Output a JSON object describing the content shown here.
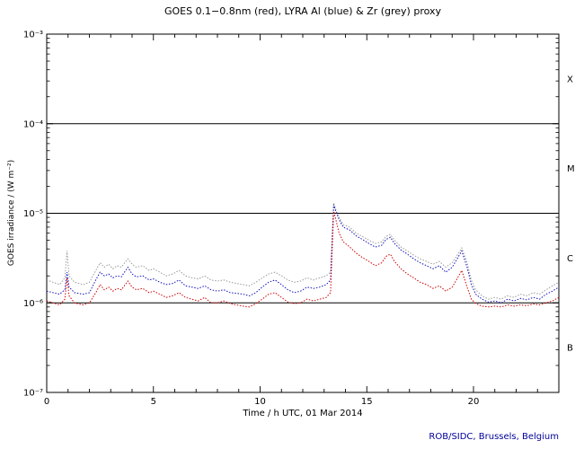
{
  "chart": {
    "title": "GOES 0.1−0.8nm (red), LYRA Al (blue) & Zr (grey) proxy",
    "xlabel": "Time / h UTC, 01 Mar 2014",
    "ylabel": "GOES irradiance / (W m⁻²)",
    "credit": "ROB/SIDC, Brussels, Belgium",
    "credit_color": "#000099"
  },
  "chart_data": {
    "type": "line",
    "title": "GOES 0.1−0.8nm (red), LYRA Al (blue) & Zr (grey) proxy",
    "xlabel": "Time / h UTC, 01 Mar 2014",
    "ylabel": "GOES irradiance / (W m⁻²)",
    "xlim": [
      0,
      24
    ],
    "ylim": [
      1e-07,
      0.001
    ],
    "yscale": "log",
    "grid": false,
    "legend": "colors named in title",
    "xticks_major": [
      0,
      5,
      10,
      15,
      20
    ],
    "xtick_labels": [
      "0",
      "5",
      "10",
      "15",
      "20"
    ],
    "ytick_values": [
      0.001,
      0.0001,
      1e-05,
      1e-06,
      1e-07
    ],
    "ytick_labels": [
      "10⁻³",
      "10⁻⁴",
      "10⁻⁵",
      "10⁻⁶",
      "10⁻⁷"
    ],
    "class_boundaries": [
      0.0001,
      1e-05,
      1e-06
    ],
    "band_labels": [
      {
        "label": "X",
        "range": [
          0.0001,
          0.001
        ]
      },
      {
        "label": "M",
        "range": [
          1e-05,
          0.0001
        ]
      },
      {
        "label": "C",
        "range": [
          1e-06,
          1e-05
        ]
      },
      {
        "label": "B",
        "range": [
          1e-07,
          1e-06
        ]
      }
    ],
    "x": [
      0,
      0.3,
      0.6,
      0.85,
      0.95,
      1.05,
      1.3,
      1.7,
      2.0,
      2.3,
      2.5,
      2.7,
      2.9,
      3.1,
      3.3,
      3.5,
      3.8,
      4.0,
      4.2,
      4.5,
      4.8,
      5.0,
      5.3,
      5.6,
      5.9,
      6.2,
      6.5,
      6.8,
      7.1,
      7.4,
      7.7,
      8.0,
      8.3,
      8.6,
      8.9,
      9.2,
      9.5,
      9.8,
      10.1,
      10.4,
      10.7,
      11.0,
      11.3,
      11.6,
      11.9,
      12.2,
      12.5,
      12.8,
      13.1,
      13.3,
      13.45,
      13.55,
      13.7,
      13.9,
      14.2,
      14.5,
      14.8,
      15.1,
      15.4,
      15.7,
      15.9,
      16.1,
      16.3,
      16.6,
      16.9,
      17.2,
      17.5,
      17.8,
      18.1,
      18.4,
      18.7,
      19.0,
      19.2,
      19.45,
      19.7,
      19.9,
      20.1,
      20.4,
      20.7,
      21.0,
      21.3,
      21.6,
      21.9,
      22.2,
      22.5,
      22.8,
      23.1,
      23.4,
      23.7,
      24.0
    ],
    "series": [
      {
        "name": "LYRA Zr proxy",
        "key": "lyra-zr",
        "color": "#999999",
        "values": [
          1.8e-06,
          1.7e-06,
          1.6e-06,
          1.9e-06,
          3.8e-06,
          2e-06,
          1.7e-06,
          1.6e-06,
          1.7e-06,
          2.3e-06,
          2.8e-06,
          2.5e-06,
          2.7e-06,
          2.4e-06,
          2.6e-06,
          2.5e-06,
          3.1e-06,
          2.7e-06,
          2.5e-06,
          2.6e-06,
          2.3e-06,
          2.4e-06,
          2.2e-06,
          2e-06,
          2.1e-06,
          2.3e-06,
          2e-06,
          1.9e-06,
          1.85e-06,
          2e-06,
          1.8e-06,
          1.75e-06,
          1.8e-06,
          1.7e-06,
          1.65e-06,
          1.6e-06,
          1.55e-06,
          1.7e-06,
          1.9e-06,
          2.1e-06,
          2.2e-06,
          2e-06,
          1.8e-06,
          1.7e-06,
          1.75e-06,
          1.9e-06,
          1.8e-06,
          1.9e-06,
          2e-06,
          2.2e-06,
          1.3e-05,
          1.1e-05,
          9e-06,
          7.5e-06,
          7e-06,
          6e-06,
          5.5e-06,
          5e-06,
          4.6e-06,
          4.8e-06,
          5.5e-06,
          5.8e-06,
          5e-06,
          4.2e-06,
          3.8e-06,
          3.4e-06,
          3.1e-06,
          2.9e-06,
          2.7e-06,
          2.9e-06,
          2.5e-06,
          2.8e-06,
          3.3e-06,
          4.1e-06,
          2.8e-06,
          1.8e-06,
          1.4e-06,
          1.2e-06,
          1.1e-06,
          1.15e-06,
          1.1e-06,
          1.2e-06,
          1.15e-06,
          1.25e-06,
          1.2e-06,
          1.3e-06,
          1.25e-06,
          1.4e-06,
          1.55e-06,
          1.7e-06
        ]
      },
      {
        "name": "LYRA Al proxy",
        "key": "lyra-al",
        "color": "#1111bb",
        "values": [
          1.35e-06,
          1.3e-06,
          1.25e-06,
          1.4e-06,
          2.2e-06,
          1.5e-06,
          1.3e-06,
          1.25e-06,
          1.3e-06,
          1.8e-06,
          2.2e-06,
          2e-06,
          2.1e-06,
          1.9e-06,
          2e-06,
          1.95e-06,
          2.5e-06,
          2.1e-06,
          1.95e-06,
          2e-06,
          1.8e-06,
          1.85e-06,
          1.7e-06,
          1.6e-06,
          1.65e-06,
          1.8e-06,
          1.55e-06,
          1.5e-06,
          1.45e-06,
          1.55e-06,
          1.4e-06,
          1.35e-06,
          1.4e-06,
          1.3e-06,
          1.28e-06,
          1.25e-06,
          1.2e-06,
          1.3e-06,
          1.5e-06,
          1.7e-06,
          1.8e-06,
          1.6e-06,
          1.4e-06,
          1.3e-06,
          1.35e-06,
          1.5e-06,
          1.45e-06,
          1.5e-06,
          1.6e-06,
          1.8e-06,
          1.25e-05,
          1.05e-05,
          8.5e-06,
          7e-06,
          6.5e-06,
          5.6e-06,
          5.1e-06,
          4.6e-06,
          4.2e-06,
          4.4e-06,
          5.1e-06,
          5.4e-06,
          4.6e-06,
          3.9e-06,
          3.5e-06,
          3.1e-06,
          2.8e-06,
          2.6e-06,
          2.4e-06,
          2.6e-06,
          2.2e-06,
          2.5e-06,
          3e-06,
          3.8e-06,
          2.5e-06,
          1.6e-06,
          1.25e-06,
          1.1e-06,
          1.02e-06,
          1.05e-06,
          1e-06,
          1.1e-06,
          1.05e-06,
          1.12e-06,
          1.08e-06,
          1.15e-06,
          1.1e-06,
          1.25e-06,
          1.35e-06,
          1.5e-06
        ]
      },
      {
        "name": "GOES 0.1−0.8nm",
        "key": "goes",
        "color": "#cc0000",
        "values": [
          1.05e-06,
          1e-06,
          9.5e-07,
          1.1e-06,
          1.9e-06,
          1.2e-06,
          1e-06,
          9.5e-07,
          1e-06,
          1.3e-06,
          1.6e-06,
          1.4e-06,
          1.5e-06,
          1.35e-06,
          1.45e-06,
          1.4e-06,
          1.75e-06,
          1.5e-06,
          1.4e-06,
          1.45e-06,
          1.3e-06,
          1.35e-06,
          1.25e-06,
          1.15e-06,
          1.2e-06,
          1.3e-06,
          1.15e-06,
          1.1e-06,
          1.05e-06,
          1.15e-06,
          1e-06,
          1e-06,
          1.05e-06,
          9.8e-07,
          9.5e-07,
          9.2e-07,
          9e-07,
          9.8e-07,
          1.1e-06,
          1.25e-06,
          1.3e-06,
          1.15e-06,
          1.02e-06,
          9.8e-07,
          1e-06,
          1.1e-06,
          1.05e-06,
          1.1e-06,
          1.15e-06,
          1.3e-06,
          1.05e-05,
          8.5e-06,
          6e-06,
          4.8e-06,
          4.2e-06,
          3.6e-06,
          3.2e-06,
          2.9e-06,
          2.6e-06,
          2.8e-06,
          3.3e-06,
          3.5e-06,
          2.9e-06,
          2.4e-06,
          2.1e-06,
          1.9e-06,
          1.7e-06,
          1.6e-06,
          1.45e-06,
          1.55e-06,
          1.35e-06,
          1.5e-06,
          1.8e-06,
          2.3e-06,
          1.5e-06,
          1.1e-06,
          9.8e-07,
          9.2e-07,
          9e-07,
          9.2e-07,
          9e-07,
          9.5e-07,
          9.2e-07,
          9.5e-07,
          9.3e-07,
          9.7e-07,
          9.5e-07,
          1e-06,
          1.05e-06,
          1.15e-06
        ]
      }
    ]
  }
}
